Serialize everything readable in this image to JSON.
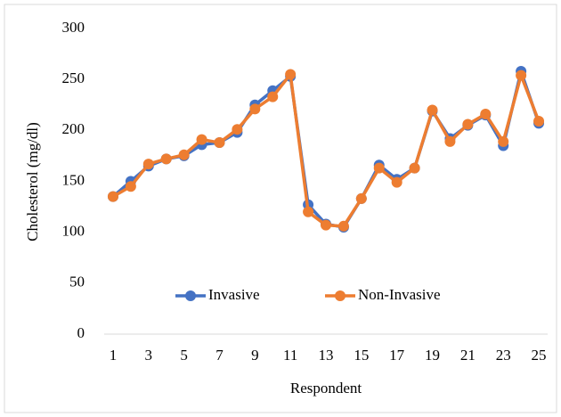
{
  "chart_data": {
    "type": "line",
    "x_label": "Respondent",
    "y_label": "Cholesterol (mg/dl)",
    "categories": [
      "1",
      null,
      "3",
      null,
      "5",
      null,
      "7",
      null,
      "9",
      null,
      "11",
      null,
      "13",
      null,
      "15",
      null,
      "17",
      null,
      "19",
      null,
      "21",
      null,
      "23",
      null,
      "25"
    ],
    "series": [
      {
        "name": "Invasive",
        "color": "#4472c4",
        "values": [
          135,
          150,
          165,
          172,
          175,
          186,
          188,
          198,
          225,
          239,
          253,
          127,
          108,
          105,
          133,
          166,
          152,
          163,
          219,
          192,
          205,
          215,
          185,
          258,
          207
        ]
      },
      {
        "name": "Non-Invasive",
        "color": "#ed7d31",
        "values": [
          135,
          145,
          167,
          172,
          176,
          191,
          188,
          201,
          221,
          233,
          255,
          120,
          107,
          106,
          133,
          163,
          149,
          163,
          220,
          189,
          206,
          216,
          189,
          254,
          209
        ]
      }
    ],
    "ylim": [
      0,
      300
    ],
    "yticks": [
      0,
      50,
      100,
      150,
      200,
      250,
      300
    ],
    "grid": false,
    "legend": "bottom"
  }
}
